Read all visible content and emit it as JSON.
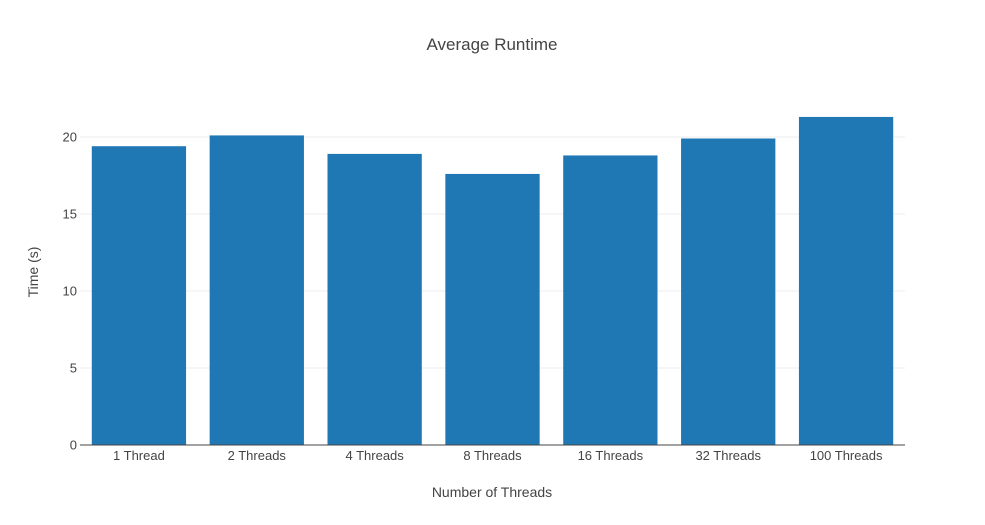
{
  "chart_data": {
    "type": "bar",
    "title": "Average Runtime",
    "xlabel": "Number of Threads",
    "ylabel": "Time (s)",
    "categories": [
      "1 Thread",
      "2 Threads",
      "4 Threads",
      "8 Threads",
      "16 Threads",
      "32 Threads",
      "100 Threads"
    ],
    "values": [
      19.4,
      20.1,
      18.9,
      17.6,
      18.8,
      19.9,
      21.3
    ],
    "ylim": [
      0,
      22.4
    ],
    "yticks": [
      0,
      5,
      10,
      15,
      20
    ],
    "ytick_labels": [
      "0",
      "5",
      "10",
      "15",
      "20"
    ],
    "grid": "horizontal",
    "bar_color": "#1f77b4",
    "grid_color": "#eeeeee",
    "axis_color": "#444444"
  }
}
